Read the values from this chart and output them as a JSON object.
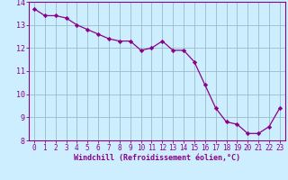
{
  "x": [
    0,
    1,
    2,
    3,
    4,
    5,
    6,
    7,
    8,
    9,
    10,
    11,
    12,
    13,
    14,
    15,
    16,
    17,
    18,
    19,
    20,
    21,
    22,
    23
  ],
  "y": [
    13.7,
    13.4,
    13.4,
    13.3,
    13.0,
    12.8,
    12.6,
    12.4,
    12.3,
    12.3,
    11.9,
    12.0,
    12.3,
    11.9,
    11.9,
    11.4,
    10.4,
    9.4,
    8.8,
    8.7,
    8.3,
    8.3,
    8.6,
    9.4
  ],
  "line_color": "#8b008b",
  "marker": "D",
  "marker_size": 2.2,
  "bg_color": "#cceeff",
  "grid_color": "#99bbcc",
  "xlabel": "Windchill (Refroidissement éolien,°C)",
  "xlabel_color": "#8b008b",
  "tick_color": "#8b008b",
  "spine_color": "#8b008b",
  "ylim": [
    8,
    14
  ],
  "xlim": [
    -0.5,
    23.5
  ],
  "yticks": [
    8,
    9,
    10,
    11,
    12,
    13,
    14
  ],
  "xticks": [
    0,
    1,
    2,
    3,
    4,
    5,
    6,
    7,
    8,
    9,
    10,
    11,
    12,
    13,
    14,
    15,
    16,
    17,
    18,
    19,
    20,
    21,
    22,
    23
  ],
  "tick_fontsize": 5.5,
  "xlabel_fontsize": 6.0,
  "linewidth": 0.9
}
